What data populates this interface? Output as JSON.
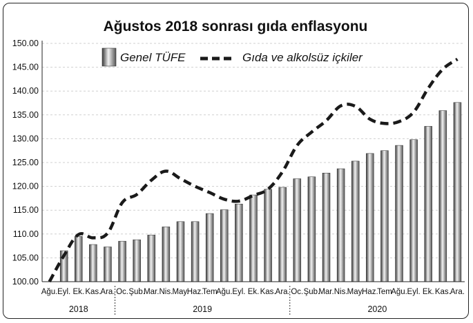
{
  "chart_data": {
    "type": "bar",
    "title": "Ağustos 2018 sonrası gıda enflasyonu",
    "ylim": [
      100,
      150
    ],
    "yticks": [
      "100.00",
      "105.00",
      "110.00",
      "115.00",
      "120.00",
      "125.00",
      "130.00",
      "135.00",
      "140.00",
      "145.00",
      "150.00"
    ],
    "categories": [
      "Ağu.",
      "Eyl.",
      "Ek.",
      "Kas.",
      "Ara.",
      "Oc.",
      "Şub.",
      "Mar.",
      "Nis.",
      "May.",
      "Haz.",
      "Tem.",
      "Ağu.",
      "Eyl.",
      "Ek.",
      "Kas.",
      "Ara.",
      "Oc.",
      "Şub.",
      "Mar.",
      "Nis.",
      "May.",
      "Haz.",
      "Tem.",
      "Ağu.",
      "Eyl.",
      "Ek.",
      "Kas.",
      "Ara."
    ],
    "tick_labels": [
      "Ağu.",
      "Eyl.",
      "Ek.",
      "Kas.",
      "Ara.",
      "Oc.",
      "Şub.",
      "Mar.",
      "Nis.",
      "May.",
      "Haz.",
      "Tem",
      "Ağu.",
      "Eyl.",
      "Ek.",
      "Kas.",
      "Ara.",
      "Oc.",
      "Şub.",
      "Mar.",
      "Nis.",
      "May.",
      "Haz.",
      "Tem",
      "Ağu.",
      "Eyl.",
      "Ek.",
      "Kas.",
      "Ara."
    ],
    "years": [
      {
        "label": "2018",
        "start": 0,
        "end": 4
      },
      {
        "label": "2019",
        "start": 5,
        "end": 16
      },
      {
        "label": "2020",
        "start": 17,
        "end": 28
      }
    ],
    "series": [
      {
        "name": "Genel TÜFE",
        "kind": "bar",
        "values": [
          100.0,
          106.5,
          109.5,
          107.8,
          107.3,
          108.5,
          108.8,
          109.8,
          111.5,
          112.6,
          112.6,
          114.3,
          115.1,
          116.3,
          118.2,
          119.4,
          119.8,
          121.6,
          122.0,
          122.8,
          123.7,
          125.3,
          126.9,
          127.5,
          128.6,
          129.8,
          132.6,
          135.9,
          137.6
        ]
      },
      {
        "name": "Gıda ve alkolsüz içkiler",
        "kind": "line",
        "style": "dashed",
        "values": [
          100.0,
          105.5,
          109.9,
          109.2,
          110.2,
          116.6,
          118.3,
          121.3,
          123.2,
          121.6,
          120.0,
          118.7,
          117.3,
          116.9,
          118.1,
          119.4,
          123.1,
          128.6,
          131.4,
          133.8,
          136.9,
          136.8,
          134.1,
          133.2,
          133.6,
          135.6,
          140.6,
          144.6,
          146.7
        ]
      }
    ],
    "legend_position": "top",
    "grid": true,
    "colors": {
      "bar_dark": "#4a4a4a",
      "bar_light": "#f4f4f4",
      "line": "#1a1a1a"
    }
  }
}
